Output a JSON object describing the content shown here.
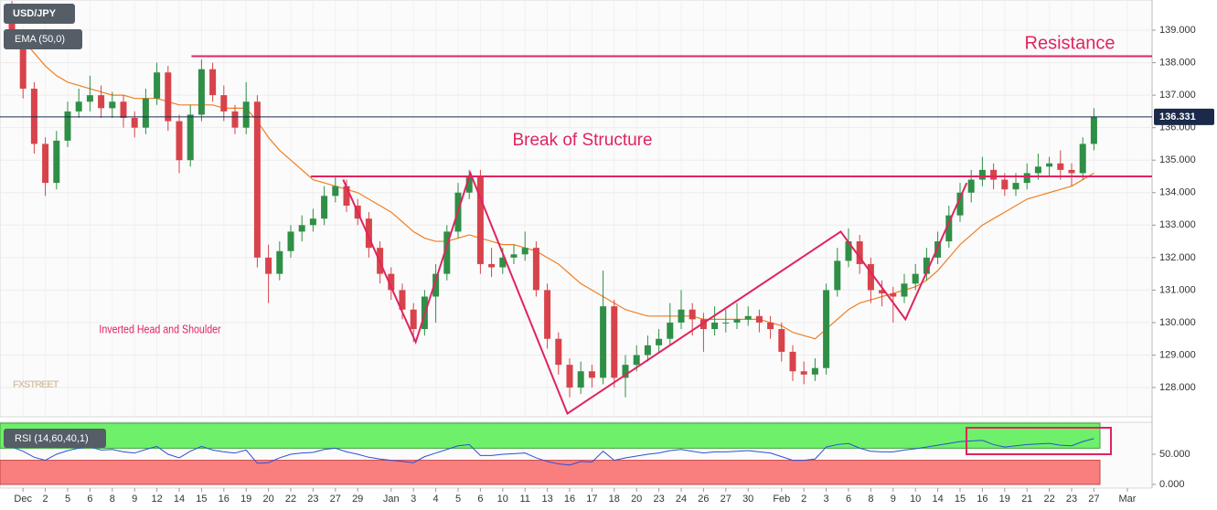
{
  "chart_data": {
    "type": "candlestick",
    "title": "USD/JPY",
    "watermark": "FXSTREET",
    "up_color": "#2f8f46",
    "down_color": "#d8434b",
    "ylim": [
      127.1,
      139.93
    ],
    "yticks": [
      {
        "value": 128,
        "label": "128.000"
      },
      {
        "value": 129,
        "label": "129.000"
      },
      {
        "value": 130,
        "label": "130.000"
      },
      {
        "value": 131,
        "label": "131.000"
      },
      {
        "value": 132,
        "label": "132.000"
      },
      {
        "value": 133,
        "label": "133.000"
      },
      {
        "value": 134,
        "label": "134.000"
      },
      {
        "value": 135,
        "label": "135.000"
      },
      {
        "value": 136,
        "label": "136.000"
      },
      {
        "value": 137,
        "label": "137.000"
      },
      {
        "value": 138,
        "label": "138.000"
      },
      {
        "value": 139,
        "label": "139.000"
      }
    ],
    "grid": true,
    "xticks": [
      {
        "value": 1,
        "label": "Dec"
      },
      {
        "value": 3,
        "label": "2"
      },
      {
        "value": 5,
        "label": "5"
      },
      {
        "value": 7,
        "label": "6"
      },
      {
        "value": 9,
        "label": "8"
      },
      {
        "value": 11,
        "label": "9"
      },
      {
        "value": 13,
        "label": "12"
      },
      {
        "value": 15,
        "label": "14"
      },
      {
        "value": 17,
        "label": "15"
      },
      {
        "value": 19,
        "label": "16"
      },
      {
        "value": 21,
        "label": "19"
      },
      {
        "value": 23,
        "label": "20"
      },
      {
        "value": 25,
        "label": "22"
      },
      {
        "value": 27,
        "label": "23"
      },
      {
        "value": 29,
        "label": "27"
      },
      {
        "value": 31,
        "label": "29"
      },
      {
        "value": 34,
        "label": "Jan"
      },
      {
        "value": 36,
        "label": "3"
      },
      {
        "value": 38,
        "label": "4"
      },
      {
        "value": 40,
        "label": "5"
      },
      {
        "value": 42,
        "label": "6"
      },
      {
        "value": 44,
        "label": "10"
      },
      {
        "value": 46,
        "label": "11"
      },
      {
        "value": 48,
        "label": "13"
      },
      {
        "value": 50,
        "label": "16"
      },
      {
        "value": 52,
        "label": "17"
      },
      {
        "value": 54,
        "label": "18"
      },
      {
        "value": 56,
        "label": "20"
      },
      {
        "value": 58,
        "label": "23"
      },
      {
        "value": 60,
        "label": "24"
      },
      {
        "value": 62,
        "label": "26"
      },
      {
        "value": 64,
        "label": "27"
      },
      {
        "value": 66,
        "label": "30"
      },
      {
        "value": 69,
        "label": "Feb"
      },
      {
        "value": 71,
        "label": "2"
      },
      {
        "value": 73,
        "label": "3"
      },
      {
        "value": 75,
        "label": "6"
      },
      {
        "value": 77,
        "label": "8"
      },
      {
        "value": 79,
        "label": "9"
      },
      {
        "value": 81,
        "label": "10"
      },
      {
        "value": 83,
        "label": "14"
      },
      {
        "value": 85,
        "label": "15"
      },
      {
        "value": 87,
        "label": "16"
      },
      {
        "value": 89,
        "label": "19"
      },
      {
        "value": 91,
        "label": "21"
      },
      {
        "value": 93,
        "label": "22"
      },
      {
        "value": 95,
        "label": "23"
      },
      {
        "value": 97,
        "label": "27"
      },
      {
        "value": 100,
        "label": "Mar"
      }
    ],
    "ohlc": [
      [
        139.2,
        139.9,
        138.5,
        138.8
      ],
      [
        138.8,
        139.0,
        136.9,
        137.2
      ],
      [
        137.2,
        137.4,
        135.2,
        135.5
      ],
      [
        135.5,
        135.7,
        133.9,
        134.3
      ],
      [
        134.3,
        135.9,
        134.1,
        135.6
      ],
      [
        135.6,
        136.8,
        135.4,
        136.5
      ],
      [
        136.5,
        137.2,
        136.3,
        136.8
      ],
      [
        136.8,
        137.6,
        136.5,
        137.0
      ],
      [
        137.0,
        137.3,
        136.3,
        136.6
      ],
      [
        136.6,
        137.1,
        136.3,
        136.8
      ],
      [
        136.8,
        137.0,
        136.0,
        136.3
      ],
      [
        136.3,
        136.5,
        135.7,
        136.0
      ],
      [
        136.0,
        137.2,
        135.8,
        136.9
      ],
      [
        136.9,
        138.0,
        136.7,
        137.7
      ],
      [
        137.7,
        137.9,
        135.9,
        136.2
      ],
      [
        136.2,
        136.4,
        134.6,
        135.0
      ],
      [
        135.0,
        136.7,
        134.8,
        136.4
      ],
      [
        136.4,
        138.1,
        136.2,
        137.8
      ],
      [
        137.8,
        138.0,
        136.8,
        137.0
      ],
      [
        137.0,
        137.3,
        136.2,
        136.5
      ],
      [
        136.5,
        136.7,
        135.8,
        136.0
      ],
      [
        136.0,
        137.4,
        135.8,
        136.8
      ],
      [
        136.8,
        137.0,
        131.7,
        132.0
      ],
      [
        132.0,
        132.4,
        130.6,
        131.5
      ],
      [
        131.5,
        132.5,
        131.3,
        132.2
      ],
      [
        132.2,
        133.0,
        132.0,
        132.8
      ],
      [
        132.8,
        133.3,
        132.5,
        133.0
      ],
      [
        133.0,
        133.5,
        132.8,
        133.2
      ],
      [
        133.2,
        134.2,
        133.0,
        133.9
      ],
      [
        133.9,
        134.5,
        133.7,
        134.2
      ],
      [
        134.2,
        134.4,
        133.4,
        133.6
      ],
      [
        133.6,
        133.8,
        133.0,
        133.2
      ],
      [
        133.2,
        133.4,
        132.0,
        132.3
      ],
      [
        132.3,
        132.5,
        131.2,
        131.5
      ],
      [
        131.5,
        131.7,
        130.7,
        131.0
      ],
      [
        131.0,
        131.2,
        130.1,
        130.4
      ],
      [
        130.4,
        130.6,
        129.4,
        129.8
      ],
      [
        129.8,
        131.0,
        129.6,
        130.8
      ],
      [
        130.8,
        131.8,
        130.0,
        131.5
      ],
      [
        131.5,
        133.0,
        131.3,
        132.8
      ],
      [
        132.8,
        134.3,
        132.6,
        134.0
      ],
      [
        134.0,
        134.7,
        133.8,
        134.5
      ],
      [
        134.5,
        134.7,
        131.5,
        131.8
      ],
      [
        131.8,
        132.3,
        131.4,
        131.7
      ],
      [
        131.7,
        132.3,
        131.5,
        132.0
      ],
      [
        132.0,
        132.4,
        131.8,
        132.1
      ],
      [
        132.1,
        132.8,
        131.9,
        132.3
      ],
      [
        132.3,
        132.5,
        130.8,
        131.0
      ],
      [
        131.0,
        131.2,
        129.2,
        129.5
      ],
      [
        129.5,
        129.7,
        128.4,
        128.7
      ],
      [
        128.7,
        128.9,
        127.7,
        128.0
      ],
      [
        128.0,
        128.8,
        127.8,
        128.5
      ],
      [
        128.5,
        128.7,
        128.0,
        128.3
      ],
      [
        128.3,
        131.6,
        128.1,
        130.5
      ],
      [
        130.5,
        130.7,
        128.0,
        128.3
      ],
      [
        128.3,
        129.0,
        127.7,
        128.7
      ],
      [
        128.7,
        129.3,
        128.5,
        129.0
      ],
      [
        129.0,
        129.6,
        128.8,
        129.3
      ],
      [
        129.3,
        129.8,
        129.1,
        129.5
      ],
      [
        129.5,
        130.6,
        129.3,
        130.0
      ],
      [
        130.0,
        131.0,
        129.8,
        130.4
      ],
      [
        130.4,
        130.6,
        129.6,
        130.1
      ],
      [
        130.1,
        130.3,
        129.1,
        129.8
      ],
      [
        129.8,
        130.5,
        129.6,
        130.0
      ],
      [
        130.0,
        130.4,
        129.7,
        130.0
      ],
      [
        130.0,
        130.6,
        129.8,
        130.1
      ],
      [
        130.1,
        130.5,
        129.9,
        130.2
      ],
      [
        130.2,
        130.4,
        129.7,
        130.0
      ],
      [
        130.0,
        130.2,
        129.5,
        129.8
      ],
      [
        129.8,
        130.0,
        128.8,
        129.1
      ],
      [
        129.1,
        129.3,
        128.2,
        128.5
      ],
      [
        128.5,
        128.8,
        128.1,
        128.4
      ],
      [
        128.4,
        128.9,
        128.2,
        128.6
      ],
      [
        128.6,
        131.2,
        128.4,
        131.0
      ],
      [
        131.0,
        132.3,
        130.8,
        131.9
      ],
      [
        131.9,
        132.9,
        131.7,
        132.5
      ],
      [
        132.5,
        132.7,
        131.5,
        131.8
      ],
      [
        131.8,
        132.0,
        130.6,
        131.0
      ],
      [
        131.0,
        131.3,
        130.5,
        130.9
      ],
      [
        130.9,
        131.1,
        130.0,
        130.8
      ],
      [
        130.8,
        131.5,
        130.6,
        131.2
      ],
      [
        131.2,
        131.8,
        131.0,
        131.5
      ],
      [
        131.5,
        132.3,
        131.3,
        132.0
      ],
      [
        132.0,
        132.8,
        131.8,
        132.5
      ],
      [
        132.5,
        133.6,
        132.3,
        133.3
      ],
      [
        133.3,
        134.3,
        133.1,
        134.0
      ],
      [
        134.0,
        134.7,
        133.7,
        134.4
      ],
      [
        134.4,
        135.1,
        134.2,
        134.7
      ],
      [
        134.7,
        134.9,
        134.1,
        134.4
      ],
      [
        134.4,
        134.6,
        133.9,
        134.1
      ],
      [
        134.1,
        134.6,
        133.9,
        134.3
      ],
      [
        134.3,
        134.9,
        134.1,
        134.6
      ],
      [
        134.6,
        135.2,
        134.4,
        134.8
      ],
      [
        134.8,
        135.1,
        134.5,
        134.9
      ],
      [
        134.9,
        135.3,
        134.4,
        134.7
      ],
      [
        134.7,
        134.9,
        134.2,
        134.6
      ],
      [
        134.6,
        135.7,
        134.4,
        135.5
      ],
      [
        135.5,
        136.6,
        135.3,
        136.33
      ]
    ],
    "series": [
      {
        "name": "EMA (50,0)",
        "color": "#f07f22",
        "values": [
          138.9,
          138.7,
          138.3,
          137.9,
          137.6,
          137.4,
          137.3,
          137.2,
          137.1,
          137.0,
          137.0,
          136.9,
          136.9,
          136.9,
          136.8,
          136.7,
          136.7,
          136.7,
          136.7,
          136.6,
          136.6,
          136.6,
          136.2,
          135.7,
          135.3,
          135.0,
          134.7,
          134.4,
          134.3,
          134.2,
          134.1,
          134.0,
          133.8,
          133.6,
          133.4,
          133.1,
          132.8,
          132.6,
          132.5,
          132.5,
          132.6,
          132.7,
          132.6,
          132.5,
          132.4,
          132.4,
          132.3,
          132.2,
          132.0,
          131.8,
          131.5,
          131.2,
          131.0,
          130.8,
          130.6,
          130.4,
          130.3,
          130.2,
          130.2,
          130.2,
          130.2,
          130.2,
          130.1,
          130.1,
          130.1,
          130.1,
          130.1,
          130.1,
          130.0,
          129.9,
          129.7,
          129.6,
          129.5,
          129.8,
          130.1,
          130.4,
          130.6,
          130.7,
          130.8,
          130.9,
          131.0,
          131.1,
          131.3,
          131.6,
          132.0,
          132.4,
          132.7,
          133.0,
          133.2,
          133.4,
          133.6,
          133.8,
          133.9,
          134.0,
          134.1,
          134.2,
          134.4,
          134.6
        ]
      }
    ],
    "last_price": 136.331,
    "levels": [
      {
        "label": "Resistance",
        "value": 138.2,
        "x_from": 16.1
      },
      {
        "label": "Break of Structure",
        "value": 134.5,
        "x_from": 26.8
      }
    ],
    "pattern": {
      "label": "Inverted Head and Shoulder",
      "color": "#e0245e",
      "x": [
        29.7,
        36.2,
        41.1,
        49.8,
        74.3,
        80.1,
        85.6
      ],
      "y": [
        134.4,
        129.4,
        134.6,
        127.2,
        132.8,
        130.1,
        134.3
      ]
    },
    "rsi": {
      "name": "RSI (14,60,40,1)",
      "color": "#2d4fd6",
      "upper": 60,
      "lower": 40,
      "ylim": [
        0,
        101.5
      ],
      "yticks": [
        {
          "value": 0,
          "label": "0.000"
        },
        {
          "value": 50,
          "label": "50.000"
        }
      ],
      "values": [
        62,
        55,
        45,
        40,
        50,
        56,
        60,
        62,
        57,
        58,
        54,
        52,
        58,
        63,
        50,
        44,
        55,
        63,
        57,
        54,
        52,
        57,
        35,
        36,
        44,
        50,
        52,
        53,
        58,
        60,
        54,
        50,
        45,
        42,
        40,
        38,
        36,
        46,
        52,
        58,
        64,
        66,
        48,
        48,
        50,
        51,
        52,
        44,
        38,
        34,
        32,
        38,
        37,
        55,
        40,
        44,
        47,
        50,
        52,
        56,
        58,
        55,
        52,
        54,
        54,
        55,
        56,
        54,
        52,
        46,
        40,
        40,
        42,
        62,
        66,
        68,
        60,
        55,
        54,
        54,
        57,
        59,
        62,
        65,
        68,
        71,
        72,
        73,
        66,
        62,
        64,
        66,
        67,
        68,
        65,
        64,
        71,
        76
      ]
    }
  }
}
